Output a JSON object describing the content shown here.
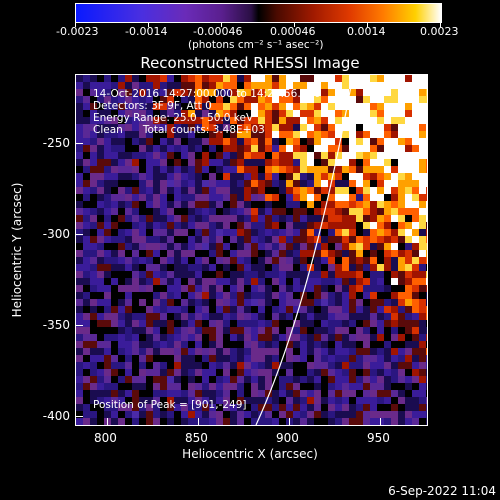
{
  "colorbar": {
    "ticks": [
      "-0.0023",
      "-0.0014",
      "-0.00046",
      "0.00046",
      "0.0014",
      "0.0023"
    ],
    "units": "(photons cm⁻² s⁻¹ asec⁻²)"
  },
  "title": "Reconstructed RHESSI Image",
  "info": {
    "line1": "14-Oct-2016 14:27:00.000 to 14:28:56.000",
    "line2": "Detectors: 3F 9F, Att 0",
    "line3": "Energy Range: 25.0 - 50.0 keV",
    "line4": "Clean      Total counts: 3.48E+03",
    "peak": "Position of Peak = [901,-249]"
  },
  "axes": {
    "xlabel": "Heliocentric X (arcsec)",
    "ylabel": "Heliocentric Y (arcsec)",
    "xticks": [
      "800",
      "850",
      "900",
      "950"
    ],
    "yticks": [
      "-250",
      "-300",
      "-350",
      "-400"
    ],
    "xlim": [
      782,
      975
    ],
    "ylim": [
      -403,
      -210
    ]
  },
  "timestamp": "6-Sep-2022 11:04",
  "colors": {
    "background": "#000000",
    "limb": "#ffffff",
    "text": "#ffffff"
  }
}
